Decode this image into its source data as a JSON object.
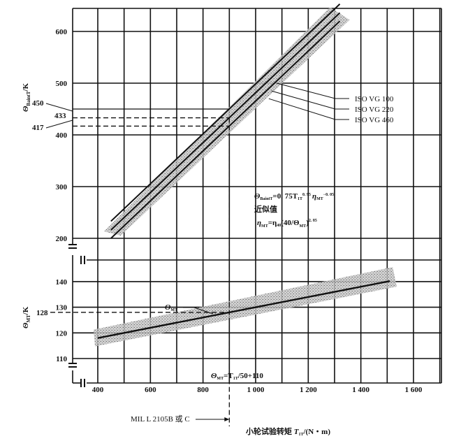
{
  "chart_data": [
    {
      "type": "line",
      "panel": "upper",
      "ylabel": "Θ_BaintT/K",
      "yticks": [
        200,
        300,
        400,
        500,
        600
      ],
      "ylim": [
        200,
        645
      ],
      "xlim": [
        305,
        1700
      ],
      "grid": true,
      "band_color": "#9a9a9a",
      "series": [
        {
          "name": "ISO VG 100",
          "x": [
            450,
            1320
          ],
          "y": [
            233,
            653
          ]
        },
        {
          "name": "ISO VG 220",
          "x": [
            450,
            1320
          ],
          "y": [
            216,
            636
          ]
        },
        {
          "name": "ISO VG 460",
          "x": [
            450,
            1320
          ],
          "y": [
            200,
            620
          ]
        }
      ],
      "reference_values": [
        {
          "label": "450",
          "y": 450,
          "style": "solid"
        },
        {
          "label": "433",
          "y": 433,
          "style": "dashed"
        },
        {
          "label": "417",
          "y": 417,
          "style": "dashed"
        }
      ],
      "formula": {
        "lhs": "Θ",
        "lhs_sub": "BaintT",
        "rhs": "=0. 75T",
        "rhs_sub": "1T",
        "exp1": "0. 95",
        "eta": "η",
        "eta_sub": "MT",
        "exp2": "−0. 05"
      },
      "approx_label": "近似值",
      "approx_formula": {
        "eta": "η",
        "sub": "MT",
        "mid": "=η",
        "sub40": "40",
        "paren": "(40/Θ",
        "sub2": "MT",
        "close": ")",
        "exp": "2. 85"
      }
    },
    {
      "type": "line",
      "panel": "lower",
      "ylabel": "Θ_MT/K",
      "yticks": [
        110,
        120,
        130,
        140
      ],
      "ytick_labels": [
        "110",
        "120",
        "130",
        "140"
      ],
      "ylim": [
        100,
        150
      ],
      "xlim": [
        305,
        1700
      ],
      "xticks": [
        400,
        600,
        800,
        1000,
        1200,
        1400,
        1600
      ],
      "xtick_labels": [
        "400",
        "600",
        "800",
        "1 000",
        "1 200",
        "1 400",
        "1 600"
      ],
      "xlabel": "小轮试验转矩 T_1T/(N・m)",
      "grid": true,
      "series": [
        {
          "name": "Θ_MT",
          "x": [
            400,
            1510
          ],
          "y": [
            118,
            140.2
          ]
        }
      ],
      "reference_values": [
        {
          "label": "128",
          "y": 128,
          "style": "dashed"
        }
      ],
      "curve_label": "Θ",
      "curve_label_sub": "MT",
      "formula": {
        "lhs": "Θ",
        "lhs_sub": "MT",
        "rhs": "=T",
        "rhs_sub": "1T",
        "tail": "/50+110"
      }
    }
  ],
  "reference_x": {
    "value": 900,
    "label": "MIL L 2105B 或 C"
  },
  "xlabel_parts": {
    "main": "小轮试验转矩 ",
    "T": "T",
    "sub": "1T",
    "unit": "/(N・m)"
  },
  "ylabel_upper_parts": {
    "sym": "Θ",
    "sub": "BaintT",
    "unit": "/K"
  },
  "ylabel_lower_parts": {
    "sym": "Θ",
    "sub": "MT",
    "unit": "/K"
  }
}
